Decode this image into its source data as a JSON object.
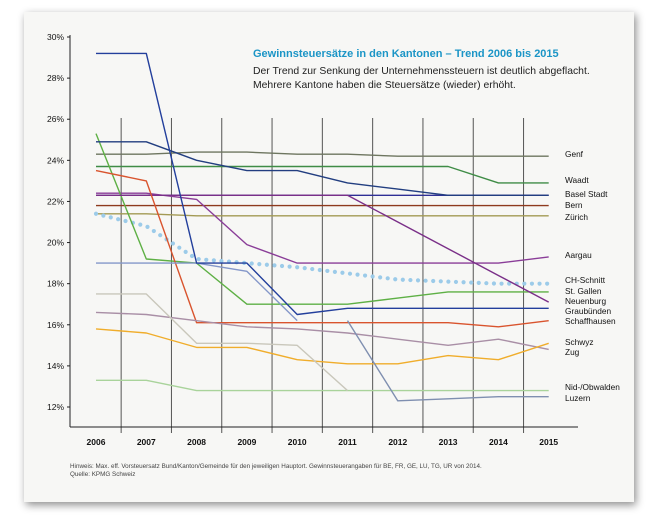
{
  "chart_data": {
    "type": "line",
    "title": "Gewinnsteuersätze in den Kantonen – Trend 2006 bis 2015",
    "subtitle": "Der Trend zur Senkung der Unternehmenssteuern ist deutlich abgeflacht. Mehrere Kantone haben die Steuersätze (wieder) erhöht.",
    "footnote": "Hinweis: Max. eff. Vorsteuersatz Bund/Kanton/Gemeinde für den jeweiligen Hauptort. Gewinnsteuerangaben für BE, FR, GE, LU, TG, UR von 2014.",
    "source": "Quelle: KPMG Schweiz",
    "x": [
      2006,
      2007,
      2008,
      2009,
      2010,
      2011,
      2012,
      2013,
      2014,
      2015
    ],
    "x_tick_labels": [
      "2006",
      "2007",
      "2008",
      "2009",
      "2010",
      "2011",
      "2012",
      "2013",
      "2014",
      "2015"
    ],
    "ylim": [
      11,
      30
    ],
    "y_ticks": [
      12,
      14,
      16,
      18,
      20,
      22,
      24,
      26,
      28,
      30
    ],
    "y_tick_labels": [
      "12%",
      "14%",
      "16%",
      "18%",
      "20%",
      "22%",
      "24%",
      "26%",
      "28%",
      "30%"
    ],
    "grid": "vertical",
    "legend": "labels at right end of lines",
    "series": [
      {
        "name": "Genf",
        "color": "#6e7660",
        "style": "solid",
        "values": [
          24.3,
          24.3,
          24.4,
          24.4,
          24.3,
          24.3,
          24.2,
          24.2,
          24.2,
          24.2
        ]
      },
      {
        "name": "Waadt",
        "color": "#3f8c46",
        "style": "solid",
        "values": [
          23.7,
          23.7,
          23.7,
          23.7,
          23.7,
          23.7,
          23.7,
          23.7,
          22.9,
          22.9
        ]
      },
      {
        "name": "Basel Stadt",
        "color": "#2f2f95",
        "style": "solid",
        "values": [
          22.3,
          22.3,
          22.3,
          22.3,
          22.3,
          22.3,
          22.3,
          22.3,
          22.3,
          22.3
        ]
      },
      {
        "name": "Bern",
        "color": "#8e3a1e",
        "style": "solid",
        "values": [
          21.8,
          21.8,
          21.8,
          21.8,
          21.8,
          21.8,
          21.8,
          21.8,
          21.8,
          21.8
        ]
      },
      {
        "name": "Zürich",
        "color": "#a39a54",
        "style": "solid",
        "values": [
          21.4,
          21.4,
          21.3,
          21.3,
          21.3,
          21.3,
          21.3,
          21.3,
          21.3,
          21.3
        ]
      },
      {
        "name": "Aargau",
        "color": "#8a3d98",
        "style": "solid",
        "values": [
          22.4,
          22.4,
          22.1,
          19.9,
          19.0,
          19.0,
          19.0,
          19.0,
          19.0,
          19.3
        ]
      },
      {
        "name": "CH-Schnitt",
        "color": "#9ccbe9",
        "style": "dotted",
        "values": [
          21.4,
          20.8,
          19.2,
          19.0,
          18.8,
          18.5,
          18.2,
          18.1,
          18.0,
          18.0
        ]
      },
      {
        "name": "St. Gallen",
        "color": "#5eb045",
        "style": "solid",
        "values": [
          25.3,
          19.2,
          19.0,
          17.0,
          17.0,
          17.0,
          17.3,
          17.6,
          17.6,
          17.6
        ]
      },
      {
        "name": "Neuenburg",
        "color": "#7a2f88",
        "style": "solid",
        "values": [
          22.3,
          22.3,
          22.3,
          22.3,
          22.3,
          22.3,
          21.0,
          19.7,
          18.4,
          17.1
        ]
      },
      {
        "name": "Graubünden",
        "color": "#223e80",
        "style": "solid",
        "values": [
          24.9,
          24.9,
          24.0,
          23.5,
          23.5,
          22.9,
          22.6,
          22.3,
          22.3,
          22.3
        ]
      },
      {
        "name": "Schaffhausen",
        "color": "#d9542e",
        "style": "solid",
        "values": [
          23.5,
          23.0,
          16.1,
          16.1,
          16.1,
          16.1,
          16.1,
          16.1,
          15.9,
          16.2
        ]
      },
      {
        "name": "Schwyz",
        "color": "#a98fa6",
        "style": "solid",
        "values": [
          16.6,
          16.5,
          16.2,
          15.9,
          15.8,
          15.6,
          15.3,
          15.0,
          15.3,
          14.8
        ]
      },
      {
        "name": "Zug",
        "color": "#f0ad2b",
        "style": "solid",
        "values": [
          15.8,
          15.6,
          14.9,
          14.9,
          14.3,
          14.1,
          14.1,
          14.5,
          14.3,
          15.1
        ]
      },
      {
        "name": "Nid-/Obwalden",
        "color": "#a9d39b",
        "style": "solid",
        "values": [
          13.3,
          13.3,
          12.8,
          12.8,
          12.8,
          12.8,
          12.8,
          12.8,
          12.8,
          12.8
        ]
      },
      {
        "name": "Luzern",
        "color": "#7f8fb0",
        "style": "solid",
        "values": [
          null,
          null,
          null,
          null,
          null,
          16.2,
          12.3,
          12.4,
          12.5,
          12.5
        ]
      },
      {
        "name": "",
        "color": "#8497c9",
        "style": "solid",
        "values": [
          19.0,
          19.0,
          19.0,
          18.6,
          16.2,
          null,
          null,
          null,
          null,
          null
        ]
      },
      {
        "name": "",
        "color": "#c9c7bb",
        "style": "solid",
        "values": [
          17.5,
          17.5,
          15.1,
          15.1,
          15.0,
          12.8,
          null,
          null,
          null,
          null
        ]
      },
      {
        "name": "",
        "color": "#233f9c",
        "style": "solid",
        "values": [
          29.2,
          29.2,
          19.0,
          19.0,
          16.5,
          16.8,
          16.8,
          16.8,
          16.8,
          16.8
        ]
      }
    ]
  }
}
